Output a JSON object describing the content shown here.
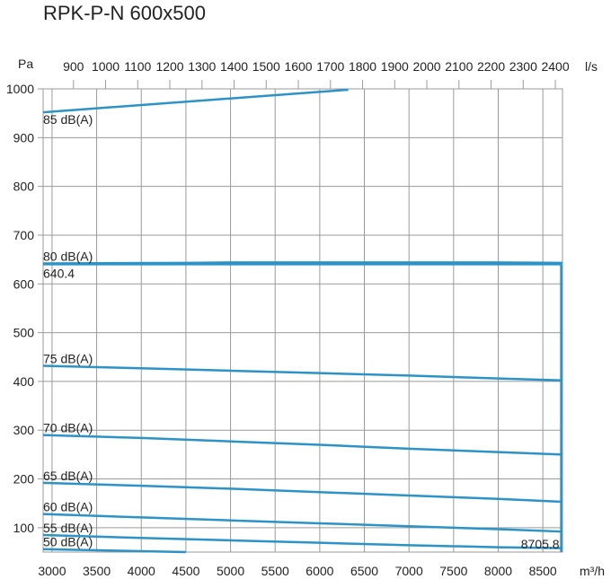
{
  "chart_data": {
    "type": "line",
    "title": "RPK-P-N 600x500",
    "y_unit": "Pa",
    "x_unit": "m³/h",
    "x2_unit": "l/s",
    "xlim": [
      2900,
      8720
    ],
    "ylim": [
      50,
      1000
    ],
    "x_ticks": [
      3000,
      3500,
      4000,
      4500,
      5000,
      5500,
      6000,
      6500,
      7000,
      7500,
      8000,
      8500
    ],
    "y_ticks": [
      100,
      200,
      300,
      400,
      500,
      600,
      700,
      800,
      900,
      1000
    ],
    "x2_ticks": [
      900,
      1000,
      1100,
      1200,
      1300,
      1400,
      1500,
      1600,
      1700,
      1800,
      1900,
      2000,
      2100,
      2200,
      2300,
      2400
    ],
    "grid": true,
    "series": [
      {
        "name": "85 dB(A)",
        "x": [
          2900,
          6300,
          6320
        ],
        "y": [
          952,
          998,
          998
        ]
      },
      {
        "name": "80 dB(A)",
        "x": [
          2900,
          4500,
          5000,
          6000,
          7000,
          8000,
          8720
        ],
        "y": [
          642,
          643,
          644,
          644,
          644,
          644,
          643
        ]
      },
      {
        "name": "75 dB(A)",
        "x": [
          2900,
          4000,
          5000,
          6000,
          7000,
          8000,
          8720
        ],
        "y": [
          432,
          427,
          422,
          417,
          412,
          406,
          402
        ]
      },
      {
        "name": "70 dB(A)",
        "x": [
          2900,
          4000,
          5000,
          6000,
          7000,
          8000,
          8720
        ],
        "y": [
          290,
          284,
          277,
          270,
          262,
          255,
          250
        ]
      },
      {
        "name": "65 dB(A)",
        "x": [
          2900,
          4000,
          5000,
          6000,
          7000,
          8000,
          8720
        ],
        "y": [
          192,
          186,
          180,
          173,
          166,
          159,
          153
        ]
      },
      {
        "name": "60 dB(A)",
        "x": [
          2900,
          4000,
          5000,
          6000,
          7000,
          8000,
          8720
        ],
        "y": [
          128,
          121,
          115,
          109,
          103,
          97,
          92
        ]
      },
      {
        "name": "55 dB(A)",
        "x": [
          2900,
          4000,
          5000,
          6000,
          7000,
          8000,
          8720
        ],
        "y": [
          85,
          79,
          74,
          69,
          64,
          60,
          58
        ]
      },
      {
        "name": "50 dB(A)",
        "x": [
          2900,
          4500
        ],
        "y": [
          56,
          50
        ]
      }
    ],
    "operating_point": {
      "x": 8705.8,
      "y": 640.4,
      "x_label": "8705.8",
      "y_label": "640.4"
    },
    "colors": {
      "line": "#2b93c8",
      "grid": "#9a9a9a"
    }
  }
}
